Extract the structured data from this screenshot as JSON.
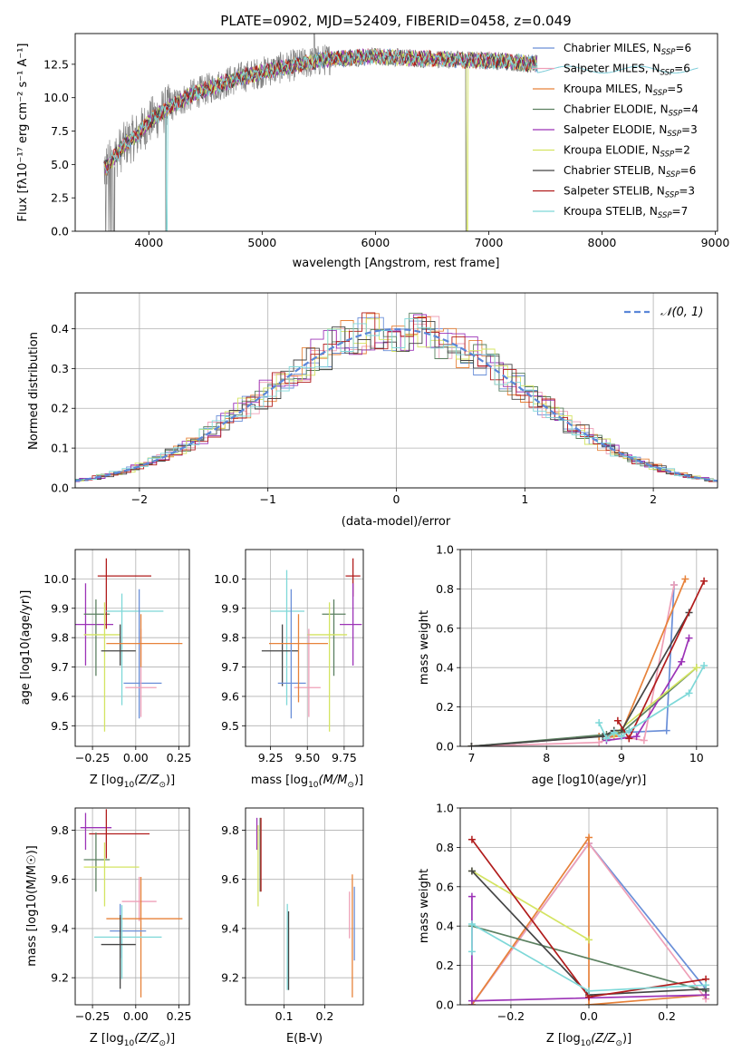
{
  "chart_data": [
    {
      "type": "line",
      "title": "PLATE=0902, MJD=52409, FIBERID=0458, z=0.049",
      "xlabel": "wavelength [Angstrom, rest frame]",
      "ylabel": "Flux [fλ10⁻¹⁷ erg cm⁻² s⁻¹ A⁻¹]",
      "xlim": [
        3350,
        9020
      ],
      "ylim": [
        0,
        14.8
      ],
      "xticks": [
        4000,
        5000,
        6000,
        7000,
        8000,
        9000
      ],
      "yticks": [
        0.0,
        2.5,
        5.0,
        7.5,
        10.0,
        12.5
      ],
      "grid": false,
      "legend_position": "right",
      "data_color": "#808080",
      "continuum": {
        "x": [
          3600,
          3700,
          3800,
          3900,
          4000,
          4200,
          4400,
          4600,
          4800,
          5000,
          5200,
          5400,
          5600,
          5800,
          6000,
          6200,
          6400,
          6600,
          6800,
          7000,
          7200,
          7400
        ],
        "y": [
          4.6,
          5.6,
          6.6,
          7.2,
          8.2,
          9.4,
          10.3,
          10.9,
          11.5,
          11.9,
          12.3,
          12.6,
          12.9,
          13.0,
          13.1,
          13.0,
          12.9,
          12.9,
          12.8,
          12.8,
          12.7,
          12.5
        ]
      },
      "series": [
        {
          "name": "Chabrier MILES, N",
          "nssp": "6",
          "color": "#6a8fd8"
        },
        {
          "name": "Salpeter MILES, N",
          "nssp": "6",
          "color": "#ef9fb7"
        },
        {
          "name": "Kroupa MILES, N",
          "nssp": "5",
          "color": "#e7823a"
        },
        {
          "name": "Chabrier ELODIE, N",
          "nssp": "4",
          "color": "#5b8060"
        },
        {
          "name": "Salpeter ELODIE, N",
          "nssp": "3",
          "color": "#9c33b7"
        },
        {
          "name": "Kroupa ELODIE, N",
          "nssp": "2",
          "color": "#d4e462"
        },
        {
          "name": "Chabrier STELIB, N",
          "nssp": "6",
          "color": "#454545"
        },
        {
          "name": "Salpeter STELIB, N",
          "nssp": "3",
          "color": "#b11c1c"
        },
        {
          "name": "Kroupa STELIB, N",
          "nssp": "7",
          "color": "#7ed8d8"
        }
      ],
      "legend_sub": "SSP"
    },
    {
      "type": "histogram",
      "xlabel": "(data-model)/error",
      "ylabel": "Normed distribution",
      "xlim": [
        -2.5,
        2.5
      ],
      "ylim": [
        0,
        0.49
      ],
      "xticks": [
        -2,
        -1,
        0,
        1,
        2
      ],
      "yticks": [
        0.0,
        0.1,
        0.2,
        0.3,
        0.4
      ],
      "grid": true,
      "legend": "𝒩(0, 1)",
      "legend_position": "top-right",
      "curve_color": "#5b87d8"
    },
    {
      "type": "scatter",
      "xlabel_main": "Z [log",
      "xlabel_sub": "10",
      "xlabel_tail": "(Z/Z",
      "xlabel_end": ")]",
      "ylabel": "age  [log10(age/yr)]",
      "xlim": [
        -0.35,
        0.31
      ],
      "ylim": [
        9.43,
        10.1
      ],
      "xticks": [
        -0.25,
        0.0,
        0.25
      ],
      "xticklabels": [
        "−0.25",
        "0.00",
        "0.25"
      ],
      "yticks": [
        9.5,
        9.6,
        9.7,
        9.8,
        9.9,
        10.0
      ],
      "grid": true,
      "points": [
        {
          "x": -0.29,
          "y": 9.845,
          "xerr": [
            0.18,
            0.16
          ],
          "yerr": [
            0.14,
            0.14
          ],
          "color": "#9c33b7"
        },
        {
          "x": -0.23,
          "y": 9.88,
          "xerr": [
            0.07,
            0.08
          ],
          "yerr": [
            0.21,
            0.05
          ],
          "color": "#5b8060"
        },
        {
          "x": -0.18,
          "y": 9.81,
          "xerr": [
            0.12,
            0.09
          ],
          "yerr": [
            0.33,
            0.11
          ],
          "color": "#d4e462"
        },
        {
          "x": -0.17,
          "y": 10.01,
          "xerr": [
            0.05,
            0.26
          ],
          "yerr": [
            0.18,
            0.06
          ],
          "color": "#b11c1c"
        },
        {
          "x": -0.08,
          "y": 9.89,
          "xerr": [
            0.09,
            0.24
          ],
          "yerr": [
            0.32,
            0.06
          ],
          "color": "#7ed8d8"
        },
        {
          "x": -0.09,
          "y": 9.755,
          "xerr": [
            0.11,
            0.09
          ],
          "yerr": [
            0.05,
            0.09
          ],
          "color": "#454545"
        },
        {
          "x": 0.02,
          "y": 9.645,
          "xerr": [
            0.09,
            0.13
          ],
          "yerr": [
            0.12,
            0.32
          ],
          "color": "#6a8fd8"
        },
        {
          "x": 0.03,
          "y": 9.63,
          "xerr": [
            0.09,
            0.09
          ],
          "yerr": [
            0.1,
            0.2
          ],
          "color": "#ef9fb7"
        },
        {
          "x": 0.03,
          "y": 9.78,
          "xerr": [
            0.2,
            0.24
          ],
          "yerr": [
            0.08,
            0.1
          ],
          "color": "#e7823a"
        }
      ]
    },
    {
      "type": "scatter",
      "xlabel_main": "mass [log",
      "xlabel_sub": "10",
      "xlabel_tail": "(M/M",
      "xlabel_end": ")]",
      "xlim": [
        9.08,
        9.88
      ],
      "ylim": [
        9.43,
        10.1
      ],
      "xticks": [
        9.25,
        9.5,
        9.75
      ],
      "xticklabels": [
        "9.25",
        "9.50",
        "9.75"
      ],
      "yticks": [
        9.5,
        9.6,
        9.7,
        9.8,
        9.9,
        10.0
      ],
      "grid": true,
      "points": [
        {
          "x": 9.81,
          "y": 10.01,
          "xerr": [
            0.05,
            0.05
          ],
          "yerr": [
            0.07,
            0.06
          ],
          "color": "#b11c1c"
        },
        {
          "x": 9.81,
          "y": 9.845,
          "xerr": [
            0.09,
            0.06
          ],
          "yerr": [
            0.14,
            0.14
          ],
          "color": "#9c33b7"
        },
        {
          "x": 9.68,
          "y": 9.88,
          "xerr": [
            0.08,
            0.08
          ],
          "yerr": [
            0.21,
            0.05
          ],
          "color": "#5b8060"
        },
        {
          "x": 9.65,
          "y": 9.81,
          "xerr": [
            0.15,
            0.12
          ],
          "yerr": [
            0.33,
            0.11
          ],
          "color": "#d4e462"
        },
        {
          "x": 9.36,
          "y": 9.89,
          "xerr": [
            0.11,
            0.12
          ],
          "yerr": [
            0.32,
            0.14
          ],
          "color": "#7ed8d8"
        },
        {
          "x": 9.33,
          "y": 9.755,
          "xerr": [
            0.14,
            0.11
          ],
          "yerr": [
            0.12,
            0.09
          ],
          "color": "#454545"
        },
        {
          "x": 9.39,
          "y": 9.645,
          "xerr": [
            0.09,
            0.1
          ],
          "yerr": [
            0.12,
            0.32
          ],
          "color": "#6a8fd8"
        },
        {
          "x": 9.51,
          "y": 9.63,
          "xerr": [
            0.1,
            0.08
          ],
          "yerr": [
            0.1,
            0.2
          ],
          "color": "#ef9fb7"
        },
        {
          "x": 9.44,
          "y": 9.78,
          "xerr": [
            0.2,
            0.2
          ],
          "yerr": [
            0.2,
            0.1
          ],
          "color": "#e7823a"
        }
      ]
    },
    {
      "type": "line",
      "xlabel": "age  [log10(age/yr)]",
      "ylabel": "mass weight",
      "xlim": [
        6.85,
        10.28
      ],
      "ylim": [
        0,
        1.0
      ],
      "xticks": [
        7,
        8,
        9,
        10
      ],
      "yticks": [
        0.0,
        0.2,
        0.4,
        0.6,
        0.8,
        1.0
      ],
      "grid": true,
      "series": [
        {
          "color": "#6a8fd8",
          "x": [
            7.0,
            8.7,
            8.9,
            9.0,
            9.6,
            9.7
          ],
          "y": [
            0.0,
            0.05,
            0.06,
            0.07,
            0.08,
            0.82
          ]
        },
        {
          "color": "#ef9fb7",
          "x": [
            7.0,
            8.7,
            8.9,
            9.0,
            9.3,
            9.7
          ],
          "y": [
            0.0,
            0.02,
            0.05,
            0.05,
            0.03,
            0.82
          ]
        },
        {
          "color": "#e7823a",
          "x": [
            7.0,
            8.7,
            8.9,
            9.0,
            9.85
          ],
          "y": [
            0.0,
            0.05,
            0.05,
            0.07,
            0.85
          ]
        },
        {
          "color": "#5b8060",
          "x": [
            7.0,
            8.8,
            9.0,
            10.0
          ],
          "y": [
            0.0,
            0.06,
            0.07,
            0.4
          ]
        },
        {
          "color": "#9c33b7",
          "x": [
            8.8,
            9.2,
            9.8,
            9.9
          ],
          "y": [
            0.03,
            0.05,
            0.43,
            0.55
          ]
        },
        {
          "color": "#d4e462",
          "x": [
            8.9,
            10.0
          ],
          "y": [
            0.06,
            0.4
          ]
        },
        {
          "color": "#454545",
          "x": [
            7.0,
            8.75,
            8.9,
            9.0,
            9.9
          ],
          "y": [
            0.0,
            0.05,
            0.08,
            0.08,
            0.68
          ]
        },
        {
          "color": "#b11c1c",
          "x": [
            8.95,
            9.1,
            10.1
          ],
          "y": [
            0.13,
            0.04,
            0.84
          ]
        },
        {
          "color": "#7ed8d8",
          "x": [
            8.7,
            8.8,
            8.9,
            9.0,
            9.1,
            9.9,
            10.1
          ],
          "y": [
            0.12,
            0.04,
            0.07,
            0.05,
            0.08,
            0.27,
            0.41
          ]
        }
      ]
    },
    {
      "type": "scatter",
      "xlabel_main": "Z [log",
      "xlabel_sub": "10",
      "xlabel_tail": "(Z/Z",
      "xlabel_end": ")]",
      "ylabel": "mass [log10(M/M☉)]",
      "xlim": [
        -0.35,
        0.31
      ],
      "ylim": [
        9.09,
        9.89
      ],
      "xticks": [
        -0.25,
        0.0,
        0.25
      ],
      "xticklabels": [
        "−0.25",
        "0.00",
        "0.25"
      ],
      "yticks": [
        9.2,
        9.4,
        9.6,
        9.8
      ],
      "grid": true,
      "points": [
        {
          "x": -0.29,
          "y": 9.81,
          "xerr": [
            0.03,
            0.15
          ],
          "yerr": [
            0.09,
            0.06
          ],
          "color": "#9c33b7"
        },
        {
          "x": -0.17,
          "y": 9.785,
          "xerr": [
            0.1,
            0.25
          ],
          "yerr": [
            0.1,
            0.1
          ],
          "color": "#b11c1c"
        },
        {
          "x": -0.23,
          "y": 9.68,
          "xerr": [
            0.07,
            0.08
          ],
          "yerr": [
            0.13,
            0.11
          ],
          "color": "#5b8060"
        },
        {
          "x": -0.18,
          "y": 9.65,
          "xerr": [
            0.12,
            0.2
          ],
          "yerr": [
            0.16,
            0.1
          ],
          "color": "#d4e462"
        },
        {
          "x": 0.02,
          "y": 9.51,
          "xerr": [
            0.1,
            0.1
          ],
          "yerr": [
            0.08,
            0.1
          ],
          "color": "#ef9fb7"
        },
        {
          "x": 0.03,
          "y": 9.44,
          "xerr": [
            0.2,
            0.24
          ],
          "yerr": [
            0.32,
            0.17
          ],
          "color": "#e7823a"
        },
        {
          "x": -0.09,
          "y": 9.39,
          "xerr": [
            0.06,
            0.15
          ],
          "yerr": [
            0.11,
            0.11
          ],
          "color": "#6a8fd8"
        },
        {
          "x": -0.08,
          "y": 9.365,
          "xerr": [
            0.16,
            0.23
          ],
          "yerr": [
            0.17,
            0.13
          ],
          "color": "#7ed8d8"
        },
        {
          "x": -0.09,
          "y": 9.335,
          "xerr": [
            0.11,
            0.09
          ],
          "yerr": [
            0.18,
            0.12
          ],
          "color": "#454545"
        }
      ]
    },
    {
      "type": "scatter",
      "xlabel": "E(B-V)",
      "xlim": [
        0.005,
        0.295
      ],
      "ylim": [
        9.09,
        9.89
      ],
      "xticks": [
        0.1,
        0.2
      ],
      "xticklabels": [
        "0.1",
        "0.2"
      ],
      "yticks": [
        9.2,
        9.4,
        9.6,
        9.8
      ],
      "grid": true,
      "points": [
        {
          "x": 0.033,
          "y": 9.81,
          "yerr": [
            0.09,
            0.04
          ],
          "color": "#9c33b7"
        },
        {
          "x": 0.036,
          "y": 9.68,
          "yerr": [
            0.19,
            0.14
          ],
          "color": "#d4e462"
        },
        {
          "x": 0.041,
          "y": 9.7,
          "yerr": [
            0.15,
            0.15
          ],
          "color": "#5b8060"
        },
        {
          "x": 0.043,
          "y": 9.7,
          "yerr": [
            0.15,
            0.15
          ],
          "color": "#b11c1c"
        },
        {
          "x": 0.108,
          "y": 9.3,
          "yerr": [
            0.15,
            0.2
          ],
          "color": "#7ed8d8"
        },
        {
          "x": 0.111,
          "y": 9.31,
          "yerr": [
            0.16,
            0.16
          ],
          "color": "#454545"
        },
        {
          "x": 0.261,
          "y": 9.45,
          "yerr": [
            0.09,
            0.1
          ],
          "color": "#ef9fb7"
        },
        {
          "x": 0.268,
          "y": 9.37,
          "yerr": [
            0.25,
            0.25
          ],
          "color": "#e7823a"
        },
        {
          "x": 0.273,
          "y": 9.41,
          "yerr": [
            0.14,
            0.16
          ],
          "color": "#6a8fd8"
        }
      ]
    },
    {
      "type": "line",
      "xlabel_main": "Z [log",
      "xlabel_sub": "10",
      "xlabel_tail": "(Z/Z",
      "xlabel_end": ")]",
      "ylabel": "mass weight",
      "xlim": [
        -0.33,
        0.33
      ],
      "ylim": [
        0,
        1.0
      ],
      "xticks": [
        -0.2,
        0.0,
        0.2
      ],
      "xticklabels": [
        "−0.2",
        "0.0",
        "0.2"
      ],
      "yticks": [
        0.0,
        0.2,
        0.4,
        0.6,
        0.8,
        1.0
      ],
      "grid": true,
      "series": [
        {
          "color": "#6a8fd8",
          "x": [
            -0.3,
            0.0,
            0.3
          ],
          "y": [
            0.0,
            0.82,
            0.08
          ]
        },
        {
          "color": "#ef9fb7",
          "x": [
            -0.3,
            0.0,
            0.3
          ],
          "y": [
            0.0,
            0.82,
            0.03
          ]
        },
        {
          "color": "#e7823a",
          "x": [
            -0.3,
            0.0,
            0.0,
            0.3
          ],
          "y": [
            0.0,
            0.85,
            0.0,
            0.05
          ]
        },
        {
          "color": "#5b8060",
          "x": [
            -0.3,
            0.3
          ],
          "y": [
            0.4,
            0.07
          ]
        },
        {
          "color": "#9c33b7",
          "x": [
            -0.3,
            -0.3,
            0.3
          ],
          "y": [
            0.55,
            0.02,
            0.05
          ]
        },
        {
          "color": "#d4e462",
          "x": [
            -0.3,
            0.0
          ],
          "y": [
            0.68,
            0.33
          ]
        },
        {
          "color": "#454545",
          "x": [
            -0.3,
            0.0,
            0.3
          ],
          "y": [
            0.68,
            0.05,
            0.08
          ]
        },
        {
          "color": "#b11c1c",
          "x": [
            -0.3,
            0.0,
            0.3
          ],
          "y": [
            0.84,
            0.04,
            0.13
          ]
        },
        {
          "color": "#7ed8d8",
          "x": [
            -0.3,
            -0.3,
            0.0,
            0.3
          ],
          "y": [
            0.27,
            0.41,
            0.07,
            0.1
          ]
        }
      ]
    }
  ]
}
